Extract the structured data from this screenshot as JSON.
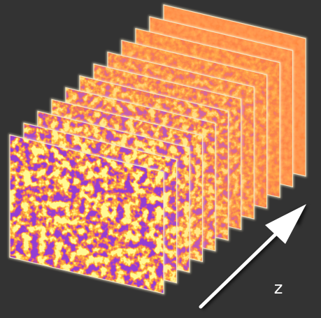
{
  "label": "z"
}
